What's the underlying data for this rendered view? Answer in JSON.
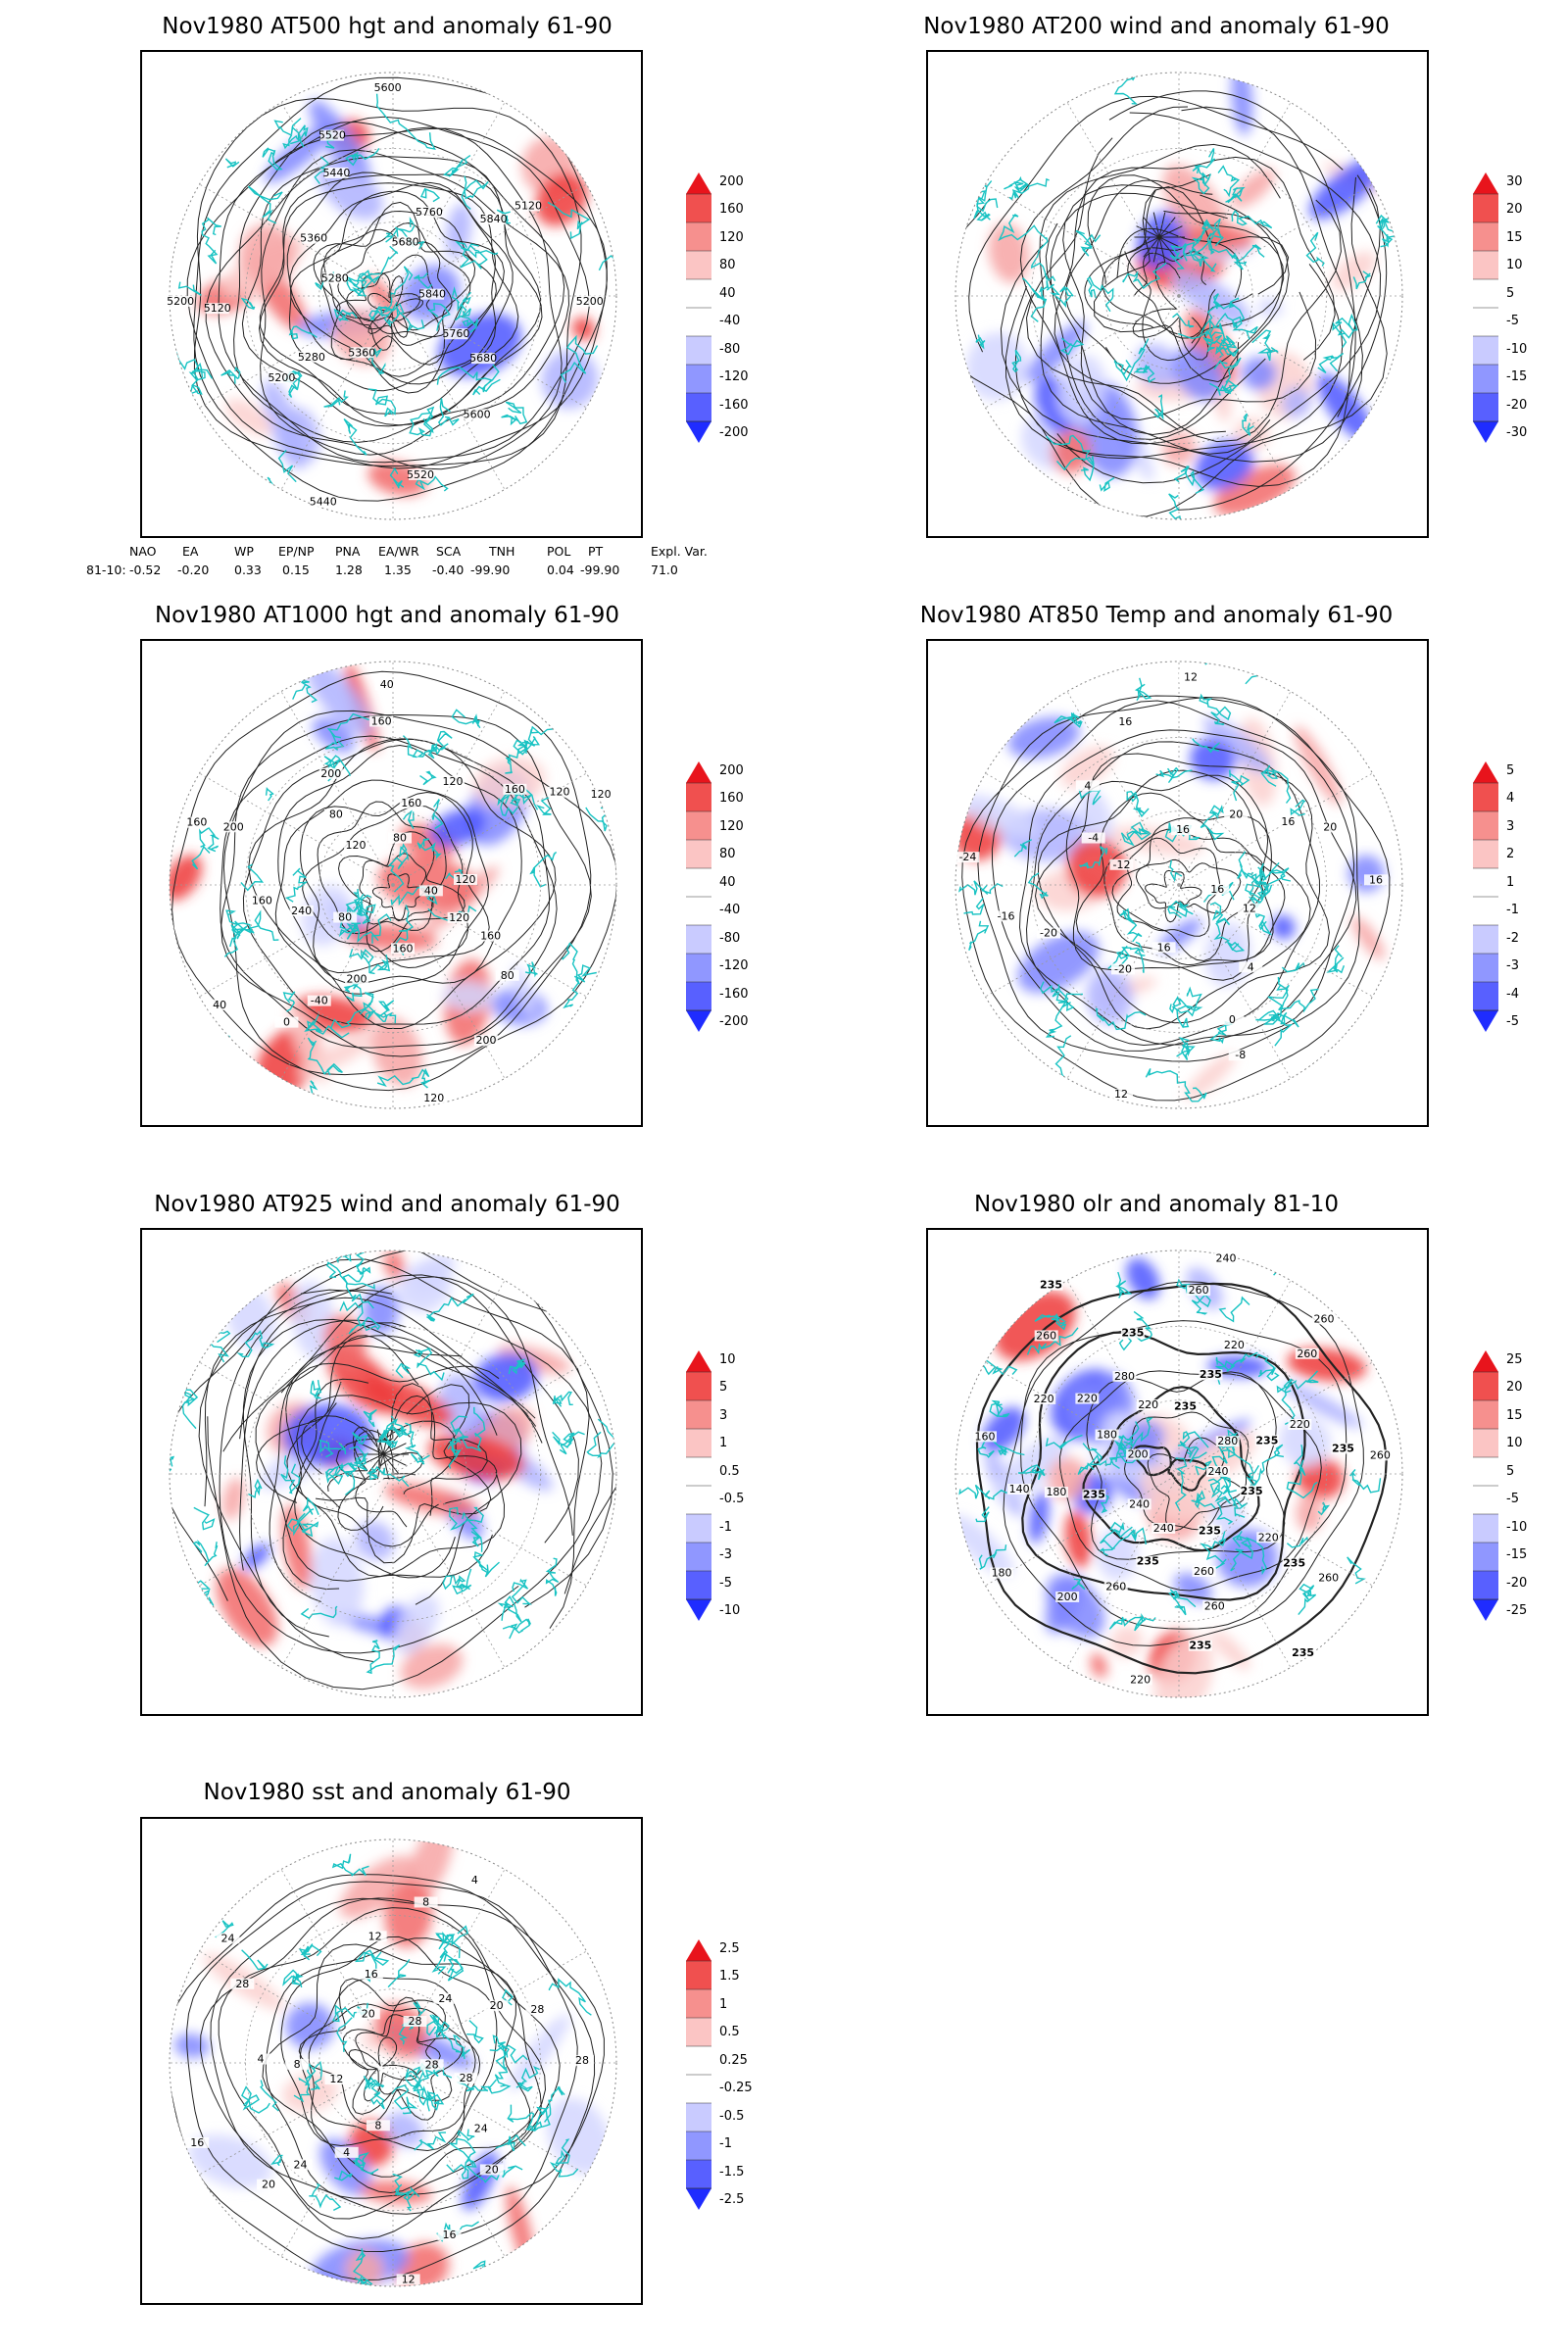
{
  "panels": [
    {
      "id": "p1",
      "title": "Nov1980 AT500 hgt and anomaly 61-90",
      "colorbar": [
        "200",
        "160",
        "120",
        "80",
        "40",
        "-40",
        "-80",
        "-120",
        "-160",
        "-200"
      ],
      "contour_labels": [
        "5840",
        "5760",
        "5680",
        "5600",
        "5520",
        "5440",
        "5360",
        "5280",
        "5200",
        "5120",
        "5200",
        "5280",
        "5360",
        "5440",
        "5520",
        "5600",
        "5680",
        "5760",
        "5840",
        "5120",
        "5200"
      ]
    },
    {
      "id": "p2",
      "title": "Nov1980 AT200 wind and anomaly 61-90",
      "colorbar": [
        "30",
        "20",
        "15",
        "10",
        "5",
        "-5",
        "-10",
        "-15",
        "-20",
        "-30"
      ],
      "contour_labels": []
    },
    {
      "id": "p3",
      "title": "Nov1980 AT1000 hgt and anomaly 61-90",
      "colorbar": [
        "200",
        "160",
        "120",
        "80",
        "40",
        "-40",
        "-80",
        "-120",
        "-160",
        "-200"
      ],
      "contour_labels": [
        "40",
        "120",
        "160",
        "80",
        "200",
        "120",
        "160",
        "200",
        "-40",
        "0",
        "40",
        "80",
        "240",
        "160",
        "200",
        "160",
        "120",
        "80",
        "200",
        "160",
        "40",
        "80",
        "160",
        "120",
        "160",
        "120",
        "120",
        "120"
      ]
    },
    {
      "id": "p4",
      "title": "Nov1980 AT850 Temp and anomaly 61-90",
      "colorbar": [
        "5",
        "4",
        "3",
        "2",
        "1",
        "-1",
        "-2",
        "-3",
        "-4",
        "-5"
      ],
      "contour_labels": [
        "16",
        "12",
        "4",
        "0",
        "-8",
        "12",
        "16",
        "-20",
        "-20",
        "-16",
        "-24",
        "-12",
        "-4",
        "4",
        "16",
        "12",
        "16",
        "20",
        "16",
        "20",
        "16"
      ]
    },
    {
      "id": "p5",
      "title": "Nov1980 AT925 wind and anomaly 61-90",
      "colorbar": [
        "10",
        "5",
        "3",
        "1",
        "0.5",
        "-0.5",
        "-1",
        "-3",
        "-5",
        "-10"
      ],
      "contour_labels": []
    },
    {
      "id": "p6",
      "title": "Nov1980 olr and anomaly 81-10",
      "colorbar": [
        "25",
        "20",
        "15",
        "10",
        "5",
        "-5",
        "-10",
        "-15",
        "-20",
        "-25"
      ],
      "contour_labels": [
        "240",
        "235",
        "220",
        "235",
        "260",
        "235",
        "235",
        "260",
        "260",
        "235",
        "220",
        "240",
        "235",
        "260",
        "200",
        "180",
        "240",
        "235",
        "180",
        "140",
        "160",
        "200",
        "180",
        "220",
        "220",
        "260",
        "235",
        "220",
        "280",
        "235",
        "260",
        "240",
        "235",
        "235",
        "220",
        "260",
        "260",
        "280",
        "235",
        "220",
        "235",
        "260"
      ]
    },
    {
      "id": "p7",
      "title": "Nov1980 sst and anomaly 61-90",
      "colorbar": [
        "2.5",
        "1.5",
        "1",
        "0.5",
        "0.25",
        "-0.25",
        "-0.5",
        "-1",
        "-1.5",
        "-2.5"
      ],
      "contour_labels": [
        "28",
        "28",
        "24",
        "20",
        "16",
        "12",
        "8",
        "4",
        "24",
        "20",
        "16",
        "12",
        "8",
        "4",
        "28",
        "24",
        "20",
        "16",
        "12",
        "8",
        "4",
        "28",
        "24",
        "20",
        "28",
        "28"
      ]
    }
  ],
  "teleconnection": {
    "headers": [
      "NAO",
      "EA",
      "WP",
      "EP/NP",
      "PNA",
      "EA/WR",
      "SCA",
      "TNH",
      "POL",
      "PT",
      "Expl. Var."
    ],
    "row_label": "81-10:",
    "values": [
      "-0.52",
      "-0.20",
      "0.33",
      "0.15",
      "1.28",
      "1.35",
      "-0.40",
      "-99.90",
      "0.04",
      "-99.90",
      "71.0"
    ]
  },
  "colors": {
    "positive_strong": "#e8141c",
    "negative_strong": "#1f2cff",
    "coastline": "#19c3c3"
  }
}
